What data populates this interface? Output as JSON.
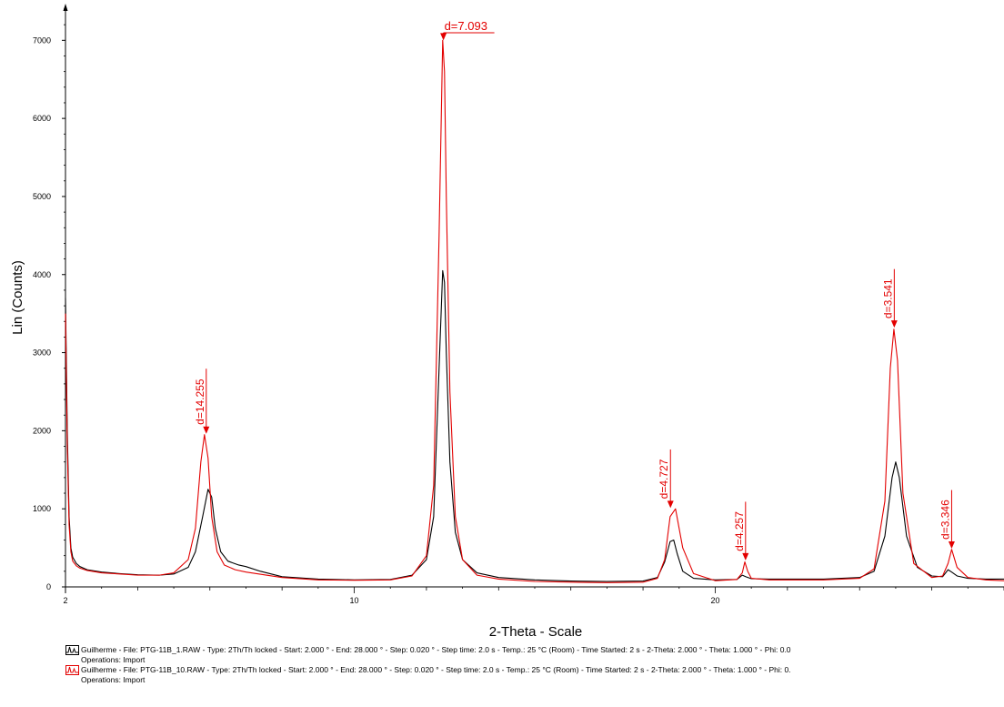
{
  "chart_data": {
    "type": "line",
    "xlabel": "2-Theta - Scale",
    "ylabel": "Lin (Counts)",
    "xlim": [
      2,
      28
    ],
    "ylim": [
      0,
      7400
    ],
    "x_ticks": [
      2,
      10,
      20
    ],
    "y_ticks": [
      0,
      1000,
      2000,
      3000,
      4000,
      5000,
      6000,
      7000
    ],
    "series": [
      {
        "color": "#000000",
        "x": [
          2.0,
          2.05,
          2.1,
          2.15,
          2.2,
          2.3,
          2.4,
          2.6,
          3.0,
          3.5,
          4.0,
          4.6,
          5.0,
          5.4,
          5.6,
          5.8,
          5.95,
          6.05,
          6.15,
          6.3,
          6.5,
          6.8,
          7.0,
          7.4,
          8.0,
          9.0,
          10.0,
          11.0,
          11.6,
          12.0,
          12.2,
          12.35,
          12.45,
          12.5,
          12.55,
          12.65,
          12.8,
          13.0,
          13.4,
          14.0,
          15.0,
          16.0,
          17.0,
          18.0,
          18.4,
          18.6,
          18.75,
          18.85,
          18.95,
          19.1,
          19.4,
          20.0,
          20.6,
          20.75,
          20.85,
          21.0,
          21.5,
          22.0,
          23.0,
          24.0,
          24.4,
          24.7,
          24.9,
          25.0,
          25.1,
          25.3,
          25.6,
          26.0,
          26.3,
          26.45,
          26.55,
          26.7,
          27.0,
          27.5,
          28.0
        ],
        "y": [
          3700,
          2000,
          900,
          500,
          380,
          300,
          260,
          220,
          190,
          170,
          155,
          150,
          165,
          250,
          450,
          900,
          1250,
          1150,
          750,
          450,
          330,
          280,
          260,
          200,
          130,
          100,
          90,
          95,
          150,
          350,
          900,
          2800,
          4050,
          3900,
          3000,
          1600,
          700,
          350,
          180,
          120,
          90,
          75,
          70,
          75,
          120,
          320,
          580,
          600,
          420,
          200,
          110,
          90,
          95,
          150,
          130,
          105,
          100,
          100,
          100,
          120,
          200,
          650,
          1400,
          1600,
          1400,
          650,
          250,
          140,
          130,
          220,
          190,
          140,
          110,
          100,
          100
        ]
      },
      {
        "color": "#e30000",
        "x": [
          2.0,
          2.05,
          2.1,
          2.15,
          2.2,
          2.3,
          2.4,
          2.6,
          3.0,
          3.5,
          4.0,
          4.6,
          5.0,
          5.4,
          5.6,
          5.75,
          5.85,
          5.95,
          6.05,
          6.2,
          6.4,
          6.7,
          7.0,
          8.0,
          9.0,
          10.0,
          11.0,
          11.6,
          12.0,
          12.2,
          12.35,
          12.45,
          12.5,
          12.55,
          12.65,
          12.8,
          13.0,
          13.4,
          14.0,
          15.0,
          16.0,
          17.0,
          18.0,
          18.4,
          18.6,
          18.75,
          18.9,
          19.1,
          19.4,
          20.0,
          20.6,
          20.75,
          20.82,
          20.9,
          21.0,
          21.5,
          22.0,
          23.0,
          24.0,
          24.4,
          24.7,
          24.85,
          24.95,
          25.05,
          25.2,
          25.5,
          26.0,
          26.3,
          26.45,
          26.55,
          26.7,
          27.0,
          27.5,
          28.0
        ],
        "y": [
          3500,
          1800,
          800,
          450,
          330,
          270,
          240,
          210,
          180,
          165,
          150,
          150,
          180,
          350,
          750,
          1600,
          1950,
          1650,
          900,
          450,
          280,
          220,
          190,
          120,
          90,
          85,
          90,
          140,
          400,
          1300,
          4500,
          7000,
          6600,
          5000,
          2500,
          900,
          350,
          150,
          100,
          70,
          60,
          55,
          60,
          110,
          350,
          900,
          1000,
          500,
          170,
          80,
          95,
          180,
          320,
          200,
          110,
          90,
          90,
          90,
          110,
          230,
          1100,
          2800,
          3300,
          2900,
          1200,
          300,
          120,
          140,
          300,
          480,
          250,
          120,
          90,
          80
        ]
      }
    ],
    "annotations": [
      {
        "label": "d=14.255",
        "x": 5.9,
        "y": 1960
      },
      {
        "label": "d=7.093",
        "x": 12.47,
        "y": 7000
      },
      {
        "label": "d=4.727",
        "x": 18.76,
        "y": 1010
      },
      {
        "label": "d=4.257",
        "x": 20.84,
        "y": 340
      },
      {
        "label": "d=3.541",
        "x": 24.96,
        "y": 3320
      },
      {
        "label": "d=3.346",
        "x": 26.55,
        "y": 490
      }
    ],
    "legend": [
      {
        "text": "Guilherme - File: PTG-11B_1.RAW - Type: 2Th/Th locked - Start: 2.000 ° - End: 28.000 ° - Step: 0.020 ° - Step time: 2.0 s - Temp.: 25 °C (Room) - Time Started: 2 s - 2-Theta: 2.000 ° - Theta: 1.000 ° - Phi: 0.0",
        "ops": "Operations: Import",
        "color": "#000000"
      },
      {
        "text": "Guilherme - File: PTG-11B_10.RAW - Type: 2Th/Th locked - Start: 2.000 ° - End: 28.000 ° - Step: 0.020 ° - Step time: 2.0 s - Temp.: 25 °C (Room) - Time Started: 2 s - 2-Theta: 2.000 ° - Theta: 1.000 ° - Phi: 0.",
        "ops": "Operations: Import",
        "color": "#e30000"
      }
    ]
  }
}
